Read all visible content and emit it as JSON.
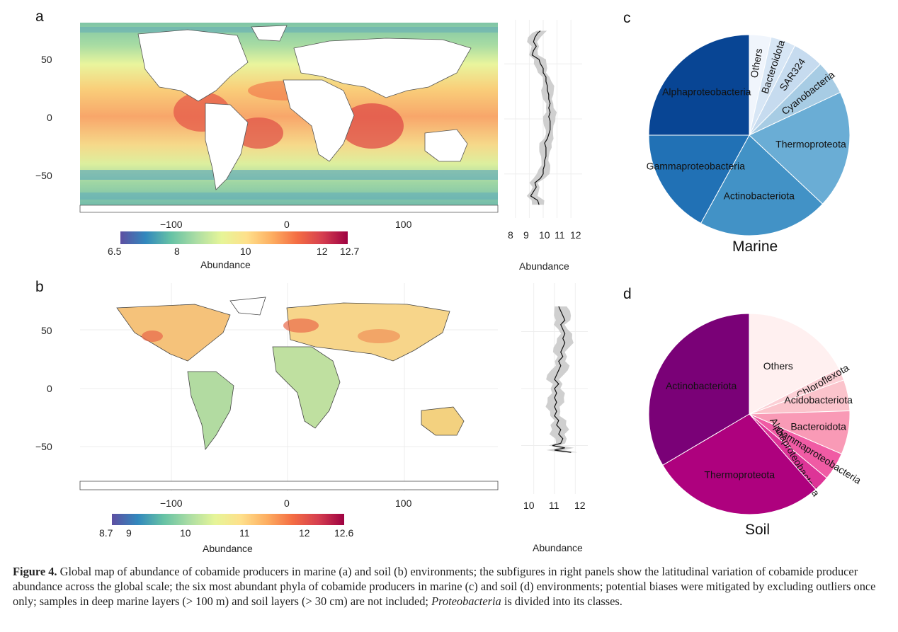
{
  "panels": {
    "a": {
      "label": "a",
      "map_y_ticks": [
        "50",
        "0",
        "−50"
      ],
      "map_x_ticks": [
        "−100",
        "0",
        "100"
      ],
      "colorbar_ticks": [
        "6.5",
        "8",
        "10",
        "12",
        "12.7"
      ],
      "colorbar_title": "Abundance",
      "lat_x_ticks": [
        "8",
        "9",
        "10",
        "11",
        "12"
      ],
      "lat_title": "Abundance"
    },
    "b": {
      "label": "b",
      "map_y_ticks": [
        "50",
        "0",
        "−50"
      ],
      "map_x_ticks": [
        "−100",
        "0",
        "100"
      ],
      "colorbar_ticks": [
        "8.7",
        "9",
        "10",
        "11",
        "12",
        "12.6"
      ],
      "colorbar_title": "Abundance",
      "lat_x_ticks": [
        "10",
        "11",
        "12"
      ],
      "lat_title": "Abundance"
    },
    "c": {
      "label": "c",
      "title": "Marine"
    },
    "d": {
      "label": "d",
      "title": "Soil"
    }
  },
  "chart_data": [
    {
      "type": "heatmap",
      "panel": "a",
      "colorbar_range": [
        6.5,
        12.7
      ],
      "colorbar_ticks": [
        6.5,
        8,
        10,
        12,
        12.7
      ],
      "colorbar_title": "Abundance",
      "x_ticks": [
        -100,
        0,
        100
      ],
      "y_ticks": [
        50,
        0,
        -50
      ],
      "colors": [
        "#5e4fa2",
        "#3288bd",
        "#66c2a5",
        "#abdda4",
        "#e6f598",
        "#fee08b",
        "#fdae61",
        "#f46d43",
        "#d53e4f",
        "#9e0142"
      ]
    },
    {
      "type": "line",
      "panel": "a-latitude",
      "xlabel": "Abundance",
      "x_ticks": [
        8,
        9,
        10,
        11,
        12
      ],
      "xlim": [
        7.6,
        12.4
      ],
      "ylim": [
        -90,
        90
      ],
      "x": [
        -78,
        -74,
        -70,
        -66,
        -62,
        -58,
        -54,
        -50,
        -46,
        -42,
        -38,
        -34,
        -30,
        -26,
        -22,
        -18,
        -14,
        -10,
        -6,
        -2,
        2,
        6,
        10,
        14,
        18,
        22,
        26,
        30,
        34,
        38,
        42,
        46,
        50,
        54,
        58,
        62,
        66,
        70,
        74,
        78,
        80
      ],
      "y": [
        9.7,
        9.6,
        9.1,
        9.3,
        9.5,
        9.4,
        9.8,
        10.0,
        10.0,
        10.1,
        10.1,
        10.2,
        10.2,
        10.2,
        10.1,
        10.3,
        10.4,
        10.5,
        10.5,
        10.5,
        10.4,
        10.5,
        10.4,
        10.5,
        10.4,
        10.4,
        10.3,
        10.3,
        10.2,
        10.2,
        10.0,
        10.0,
        9.8,
        9.7,
        9.2,
        9.3,
        9.5,
        9.3,
        9.4,
        9.6,
        9.8
      ],
      "band_half_width": 0.5
    },
    {
      "type": "heatmap",
      "panel": "b",
      "colorbar_range": [
        8.7,
        12.6
      ],
      "colorbar_ticks": [
        8.7,
        9,
        10,
        11,
        12,
        12.6
      ],
      "colorbar_title": "Abundance",
      "x_ticks": [
        -100,
        0,
        100
      ],
      "y_ticks": [
        50,
        0,
        -50
      ],
      "colors": [
        "#5e4fa2",
        "#3288bd",
        "#66c2a5",
        "#abdda4",
        "#e6f598",
        "#fee08b",
        "#fdae61",
        "#f46d43",
        "#d53e4f",
        "#9e0142"
      ]
    },
    {
      "type": "line",
      "panel": "b-latitude",
      "xlabel": "Abundance",
      "x_ticks": [
        10,
        11,
        12
      ],
      "xlim": [
        9.6,
        12.4
      ],
      "ylim": [
        -90,
        90
      ],
      "x": [
        -56,
        -54,
        -52,
        -50,
        -48,
        -44,
        -40,
        -36,
        -32,
        -28,
        -24,
        -20,
        -16,
        -12,
        -8,
        -4,
        0,
        4,
        8,
        12,
        16,
        20,
        24,
        28,
        32,
        36,
        40,
        44,
        48,
        52,
        56,
        60,
        64,
        68,
        72
      ],
      "y": [
        11.8,
        11.0,
        11.5,
        10.9,
        11.3,
        11.4,
        11.2,
        11.3,
        11.1,
        11.2,
        11.0,
        11.1,
        11.0,
        11.1,
        11.0,
        11.1,
        11.0,
        11.2,
        11.0,
        11.1,
        11.2,
        11.3,
        11.2,
        11.4,
        11.3,
        11.4,
        11.5,
        11.4,
        11.5,
        11.4,
        11.3,
        11.5,
        11.4,
        11.3,
        11.2
      ],
      "band_half_width": 0.45
    },
    {
      "type": "pie",
      "panel": "c",
      "title": "Marine",
      "labels": [
        "Others",
        "Bacteroidota",
        "SAR324",
        "Cyanobacteria",
        "Thermoproteota",
        "Actinobacteriota",
        "Gammaproteobacteria",
        "Alphaproteobacteria"
      ],
      "values": [
        3.5,
        4.0,
        5.0,
        5.5,
        19.0,
        21.0,
        17.0,
        25.0
      ],
      "colors": [
        "#f0f5fc",
        "#d7e6f5",
        "#c6dbef",
        "#a7cce4",
        "#6aadd5",
        "#4292c6",
        "#2171b5",
        "#084594"
      ]
    },
    {
      "type": "pie",
      "panel": "d",
      "title": "Soil",
      "labels": [
        "Others",
        "Chloroflexota",
        "Acidobacteriota",
        "Bacteroidota",
        "Gammaproteobacteria",
        "Alphaproteobacteria",
        "Thermoproteota",
        "Actinobacteriota"
      ],
      "values": [
        17.5,
        2.0,
        5.0,
        7.0,
        4.5,
        2.5,
        28.0,
        33.5
      ],
      "colors": [
        "#fff0f0",
        "#fcd0d6",
        "#fbc4cc",
        "#f99ab6",
        "#f05ba4",
        "#dd3497",
        "#ae017e",
        "#7a0177"
      ]
    }
  ],
  "caption": {
    "figure_label": "Figure 4.",
    "text_1": " Global map of abundance of cobamide producers in marine (a) and soil (b) environments; the subfigures in right panels show the latitudinal variation of cobamide producer abundance across the global scale; the six most abundant phyla of cobamide producers in marine (c) and soil (d) environments; potential biases were mitigated by excluding outliers once only; samples in deep marine layers (> 100 m) and soil layers (> 30 cm) are not included; ",
    "italic": "Proteobacteria",
    "text_2": " is divided into its classes."
  }
}
